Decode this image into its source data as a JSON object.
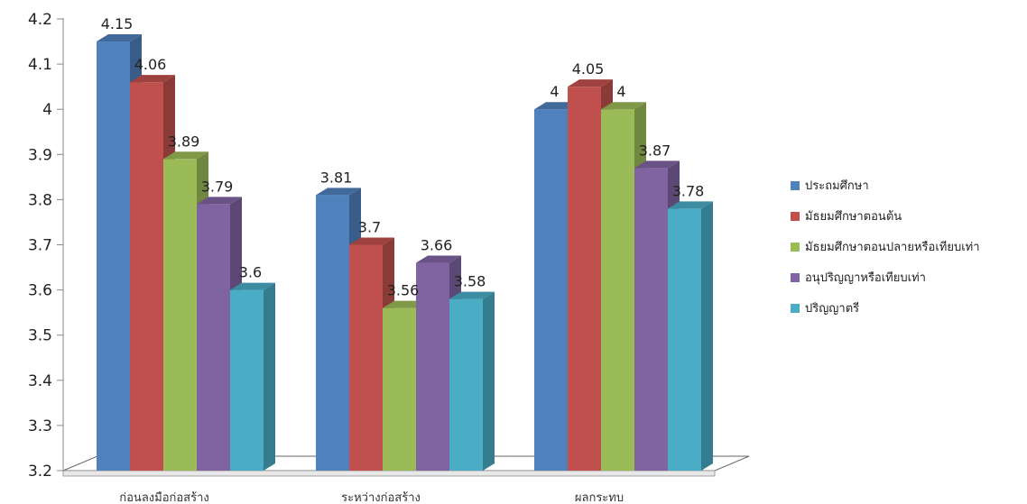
{
  "chart_data": {
    "type": "bar",
    "categories": [
      "ก่อนลงมือก่อสร้าง",
      "ระหว่างก่อสร้าง",
      "ผลกระทบ"
    ],
    "series": [
      {
        "name": "ประถมศึกษา",
        "values": [
          4.15,
          3.81,
          4
        ],
        "labels": [
          "4.15",
          "3.81",
          "4"
        ],
        "color": "#4F81BD"
      },
      {
        "name": "มัธยมศึกษาตอนต้น",
        "values": [
          4.06,
          3.7,
          4.05
        ],
        "labels": [
          "4.06",
          "3.7",
          "4.05"
        ],
        "color": "#C0504D"
      },
      {
        "name": "มัธยมศึกษาตอนปลายหรือเทียบเท่า",
        "values": [
          3.89,
          3.56,
          4
        ],
        "labels": [
          "3.89",
          "3.56",
          "4"
        ],
        "color": "#9BBB59"
      },
      {
        "name": "อนุปริญญาหรือเทียบเท่า",
        "values": [
          3.79,
          3.66,
          3.87
        ],
        "labels": [
          "3.79",
          "3.66",
          "3.87"
        ],
        "color": "#8064A2"
      },
      {
        "name": "ปริญญาตรี",
        "values": [
          3.6,
          3.58,
          3.78
        ],
        "labels": [
          "3.6",
          "3.58",
          "3.78"
        ],
        "color": "#4BACC6"
      }
    ],
    "yticks": [
      "3.2",
      "3.3",
      "3.4",
      "3.5",
      "3.6",
      "3.7",
      "3.8",
      "3.9",
      "4",
      "4.1",
      "4.2"
    ],
    "ylim": [
      3.2,
      4.2
    ],
    "grid": false,
    "legend_position": "right",
    "style": "3d-clustered-bar"
  }
}
